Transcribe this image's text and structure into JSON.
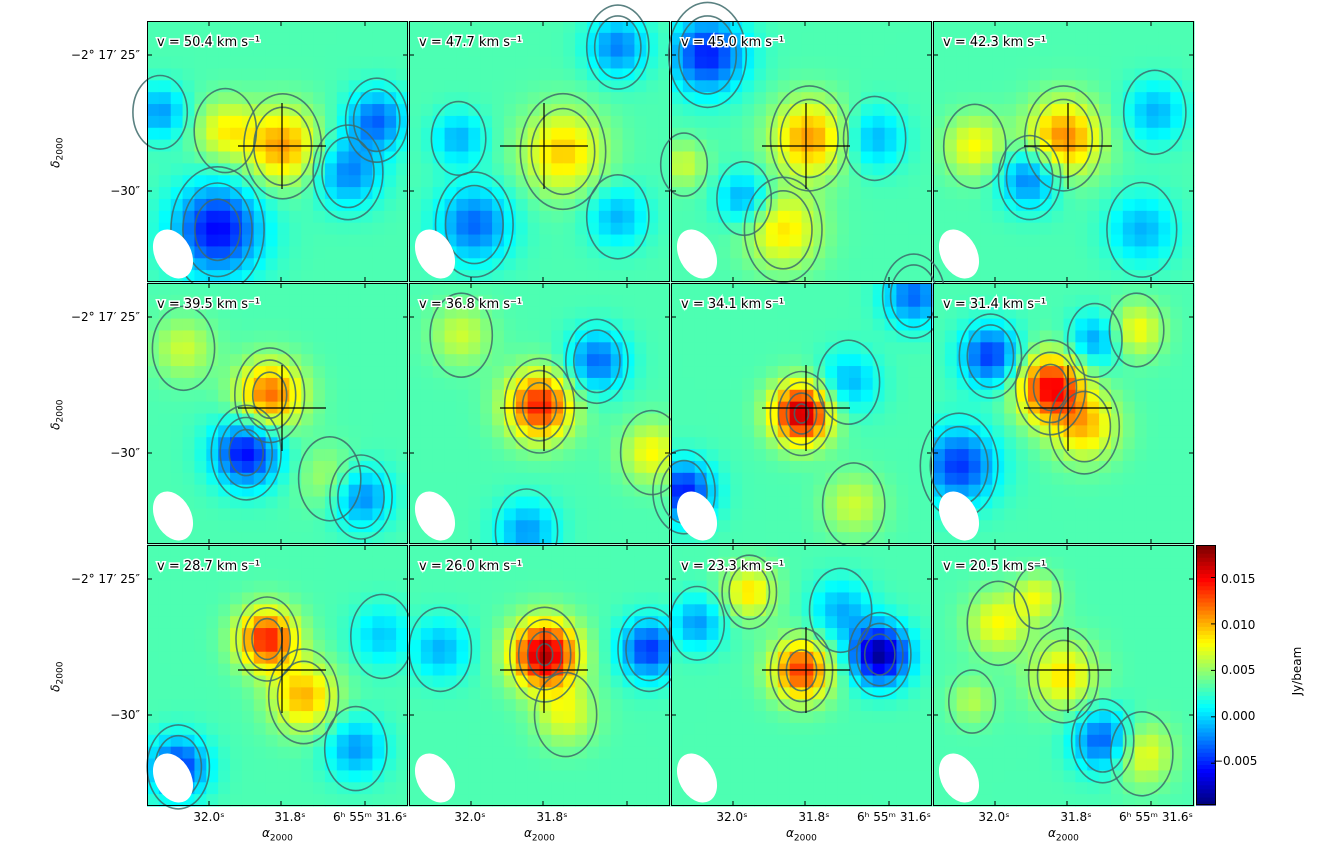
{
  "chart_data": {
    "type": "heatmap",
    "layout": "3x4 grid of channel maps",
    "colormap": "jet",
    "channel_prefix": "v = ",
    "channel_unit": "km s⁻¹",
    "panels": [
      {
        "v": "50.4",
        "peaks": [
          {
            "x": 0.52,
            "y": 0.48,
            "a": 0.55,
            "s": 0.1
          },
          {
            "x": 0.3,
            "y": 0.42,
            "a": 0.35,
            "s": 0.08
          },
          {
            "x": 0.27,
            "y": 0.8,
            "a": -0.65,
            "s": 0.12
          },
          {
            "x": 0.77,
            "y": 0.58,
            "a": -0.4,
            "s": 0.09
          },
          {
            "x": 0.88,
            "y": 0.38,
            "a": -0.45,
            "s": 0.08
          },
          {
            "x": 0.05,
            "y": 0.35,
            "a": -0.35,
            "s": 0.07
          }
        ]
      },
      {
        "v": "47.7",
        "peaks": [
          {
            "x": 0.59,
            "y": 0.5,
            "a": 0.45,
            "s": 0.11
          },
          {
            "x": 0.25,
            "y": 0.78,
            "a": -0.45,
            "s": 0.1
          },
          {
            "x": 0.8,
            "y": 0.1,
            "a": -0.4,
            "s": 0.08
          },
          {
            "x": 0.19,
            "y": 0.45,
            "a": -0.3,
            "s": 0.07
          },
          {
            "x": 0.8,
            "y": 0.75,
            "a": -0.3,
            "s": 0.08
          }
        ]
      },
      {
        "v": "45.0",
        "peaks": [
          {
            "x": 0.53,
            "y": 0.45,
            "a": 0.55,
            "s": 0.1
          },
          {
            "x": 0.43,
            "y": 0.8,
            "a": 0.4,
            "s": 0.1
          },
          {
            "x": 0.14,
            "y": 0.13,
            "a": -0.6,
            "s": 0.1
          },
          {
            "x": 0.28,
            "y": 0.68,
            "a": -0.35,
            "s": 0.07
          },
          {
            "x": 0.78,
            "y": 0.45,
            "a": -0.3,
            "s": 0.08
          },
          {
            "x": 0.05,
            "y": 0.55,
            "a": 0.25,
            "s": 0.06
          }
        ]
      },
      {
        "v": "42.3",
        "peaks": [
          {
            "x": 0.5,
            "y": 0.45,
            "a": 0.6,
            "s": 0.1
          },
          {
            "x": 0.16,
            "y": 0.48,
            "a": 0.35,
            "s": 0.08
          },
          {
            "x": 0.37,
            "y": 0.6,
            "a": -0.45,
            "s": 0.08
          },
          {
            "x": 0.85,
            "y": 0.35,
            "a": -0.3,
            "s": 0.08
          },
          {
            "x": 0.8,
            "y": 0.8,
            "a": -0.3,
            "s": 0.09
          }
        ]
      },
      {
        "v": "39.5",
        "peaks": [
          {
            "x": 0.47,
            "y": 0.43,
            "a": 0.65,
            "s": 0.09
          },
          {
            "x": 0.38,
            "y": 0.65,
            "a": -0.65,
            "s": 0.09
          },
          {
            "x": 0.14,
            "y": 0.25,
            "a": 0.25,
            "s": 0.08
          },
          {
            "x": 0.82,
            "y": 0.82,
            "a": -0.4,
            "s": 0.08
          },
          {
            "x": 0.7,
            "y": 0.75,
            "a": 0.2,
            "s": 0.08
          }
        ]
      },
      {
        "v": "36.8",
        "peaks": [
          {
            "x": 0.5,
            "y": 0.47,
            "a": 0.8,
            "s": 0.09
          },
          {
            "x": 0.72,
            "y": 0.3,
            "a": -0.45,
            "s": 0.08
          },
          {
            "x": 0.93,
            "y": 0.65,
            "a": 0.35,
            "s": 0.08
          },
          {
            "x": 0.2,
            "y": 0.2,
            "a": 0.25,
            "s": 0.08
          },
          {
            "x": 0.45,
            "y": 0.95,
            "a": -0.35,
            "s": 0.08
          }
        ]
      },
      {
        "v": "34.1",
        "peaks": [
          {
            "x": 0.5,
            "y": 0.5,
            "a": 1.0,
            "s": 0.08
          },
          {
            "x": 0.05,
            "y": 0.8,
            "a": -0.6,
            "s": 0.08
          },
          {
            "x": 0.93,
            "y": 0.05,
            "a": -0.45,
            "s": 0.08
          },
          {
            "x": 0.68,
            "y": 0.38,
            "a": -0.3,
            "s": 0.08
          },
          {
            "x": 0.7,
            "y": 0.85,
            "a": 0.25,
            "s": 0.08
          }
        ]
      },
      {
        "v": "31.4",
        "peaks": [
          {
            "x": 0.45,
            "y": 0.4,
            "a": 0.85,
            "s": 0.09
          },
          {
            "x": 0.58,
            "y": 0.55,
            "a": 0.45,
            "s": 0.09
          },
          {
            "x": 0.22,
            "y": 0.28,
            "a": -0.55,
            "s": 0.08
          },
          {
            "x": 0.62,
            "y": 0.22,
            "a": -0.35,
            "s": 0.07
          },
          {
            "x": 0.1,
            "y": 0.7,
            "a": -0.55,
            "s": 0.1
          },
          {
            "x": 0.78,
            "y": 0.18,
            "a": 0.35,
            "s": 0.07
          }
        ]
      },
      {
        "v": "28.7",
        "peaks": [
          {
            "x": 0.46,
            "y": 0.36,
            "a": 0.8,
            "s": 0.08
          },
          {
            "x": 0.6,
            "y": 0.58,
            "a": 0.5,
            "s": 0.09
          },
          {
            "x": 0.12,
            "y": 0.85,
            "a": -0.55,
            "s": 0.08
          },
          {
            "x": 0.8,
            "y": 0.78,
            "a": -0.35,
            "s": 0.08
          },
          {
            "x": 0.9,
            "y": 0.35,
            "a": -0.25,
            "s": 0.08
          }
        ]
      },
      {
        "v": "26.0",
        "peaks": [
          {
            "x": 0.52,
            "y": 0.42,
            "a": 1.0,
            "s": 0.09
          },
          {
            "x": 0.92,
            "y": 0.4,
            "a": -0.55,
            "s": 0.08
          },
          {
            "x": 0.6,
            "y": 0.65,
            "a": 0.3,
            "s": 0.08
          },
          {
            "x": 0.12,
            "y": 0.4,
            "a": -0.3,
            "s": 0.08
          }
        ]
      },
      {
        "v": "23.3",
        "peaks": [
          {
            "x": 0.5,
            "y": 0.48,
            "a": 0.75,
            "s": 0.08
          },
          {
            "x": 0.8,
            "y": 0.42,
            "a": -0.85,
            "s": 0.08
          },
          {
            "x": 0.3,
            "y": 0.18,
            "a": 0.4,
            "s": 0.07
          },
          {
            "x": 0.1,
            "y": 0.3,
            "a": -0.35,
            "s": 0.07
          },
          {
            "x": 0.65,
            "y": 0.25,
            "a": -0.3,
            "s": 0.08
          }
        ]
      },
      {
        "v": "20.5",
        "peaks": [
          {
            "x": 0.5,
            "y": 0.5,
            "a": 0.4,
            "s": 0.09
          },
          {
            "x": 0.65,
            "y": 0.75,
            "a": -0.5,
            "s": 0.08
          },
          {
            "x": 0.8,
            "y": 0.8,
            "a": 0.35,
            "s": 0.08
          },
          {
            "x": 0.25,
            "y": 0.3,
            "a": 0.35,
            "s": 0.08
          },
          {
            "x": 0.4,
            "y": 0.2,
            "a": 0.3,
            "s": 0.06
          },
          {
            "x": 0.15,
            "y": 0.6,
            "a": 0.2,
            "s": 0.06
          }
        ]
      }
    ],
    "y_ticks": [
      "−2° 17′ 25″",
      "−30″"
    ],
    "x_ticks": [
      "32.0ˢ",
      "31.8ˢ",
      "6ʰ 55ᵐ 31.6ˢ"
    ],
    "ylabel": "δ",
    "ylabel_sub": "2000",
    "xlabel": "α",
    "xlabel_sub": "2000",
    "colorbar": {
      "label": "Jy/beam",
      "min": -0.0095,
      "max": 0.0185,
      "ticks": [
        "0.015",
        "0.010",
        "0.005",
        "0.000",
        "−0.005"
      ],
      "tick_values": [
        0.015,
        0.01,
        0.005,
        0.0,
        -0.005
      ]
    },
    "colors": {
      "panel_border": "#000000",
      "contour": "#3d6b6b",
      "marker": "#000000",
      "beam": "#ffffff"
    }
  }
}
